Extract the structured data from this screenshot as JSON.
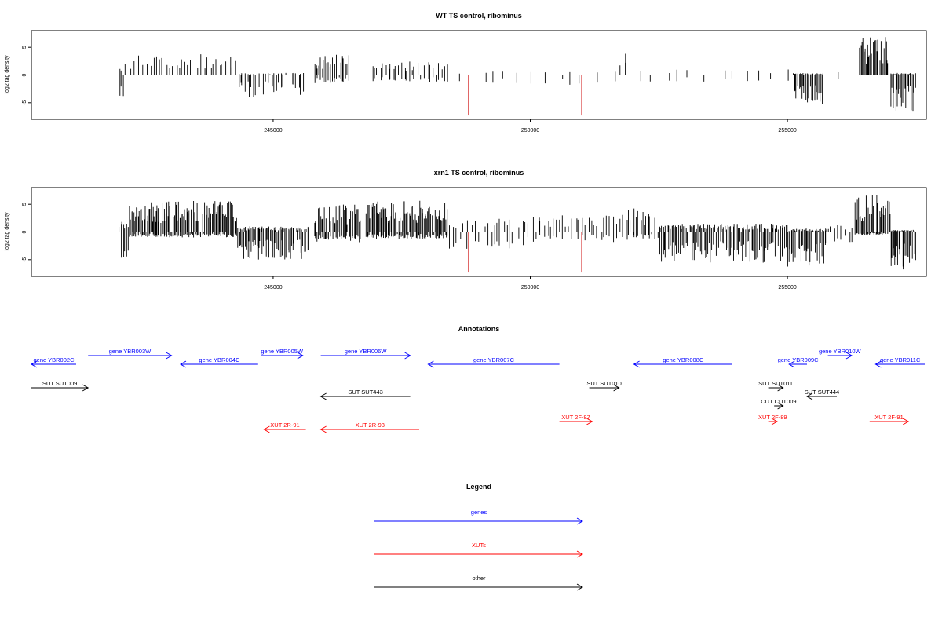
{
  "colors": {
    "gene": "#0000ff",
    "xut": "#ff0000",
    "other": "#000000",
    "highlight": "#cc0000"
  },
  "chart_data": [
    {
      "type": "bar",
      "title": "WT TS control, ribominus",
      "ylabel": "log2 tag density",
      "xlim": [
        240300,
        257700
      ],
      "ylim": [
        -8,
        8
      ],
      "x_ticks": [
        245000,
        250000,
        255000
      ],
      "x_tick_labels": [
        "245000",
        "250000",
        "255000"
      ],
      "y_ticks": [
        -5,
        0,
        5
      ],
      "y_tick_labels": [
        "-5",
        "0",
        "5"
      ],
      "highlight_lines": [
        {
          "x": 248800,
          "y": -7.3
        },
        {
          "x": 251000,
          "y": -7.3
        }
      ],
      "segments": [
        {
          "start": 242000,
          "end": 242100,
          "pos": 1.0,
          "neg": -3.5,
          "density": 0.6
        },
        {
          "start": 242100,
          "end": 244300,
          "pos": 3.0,
          "neg": 0,
          "density": 0.25
        },
        {
          "start": 244300,
          "end": 245600,
          "pos": 0.3,
          "neg": -3.2,
          "density": 0.35
        },
        {
          "start": 245800,
          "end": 246500,
          "pos": 3.0,
          "neg": -1.2,
          "density": 0.55
        },
        {
          "start": 246900,
          "end": 248400,
          "pos": 2.0,
          "neg": -1.0,
          "density": 0.3
        },
        {
          "start": 248400,
          "end": 251700,
          "pos": 0.5,
          "neg": -1.5,
          "density": 0.06
        },
        {
          "start": 251700,
          "end": 252000,
          "pos": 3.5,
          "neg": 0,
          "density": 0.2
        },
        {
          "start": 252000,
          "end": 255100,
          "pos": 0.8,
          "neg": -1.0,
          "density": 0.06
        },
        {
          "start": 255100,
          "end": 255700,
          "pos": 0.3,
          "neg": -4.5,
          "density": 0.75
        },
        {
          "start": 255700,
          "end": 256400,
          "pos": 0.4,
          "neg": -0.6,
          "density": 0.05
        },
        {
          "start": 256400,
          "end": 257000,
          "pos": 5.5,
          "neg": 0,
          "density": 0.85
        },
        {
          "start": 257000,
          "end": 257500,
          "pos": 0.3,
          "neg": -5.5,
          "density": 0.8
        }
      ]
    },
    {
      "type": "bar",
      "title": "xrn1 TS control, ribominus",
      "ylabel": "log2 tag density",
      "xlim": [
        240300,
        257700
      ],
      "ylim": [
        -8,
        8
      ],
      "x_ticks": [
        245000,
        250000,
        255000
      ],
      "x_tick_labels": [
        "245000",
        "250000",
        "255000"
      ],
      "y_ticks": [
        -5,
        0,
        5
      ],
      "y_tick_labels": [
        "-5",
        "0",
        "5"
      ],
      "highlight_lines": [
        {
          "x": 248800,
          "y": -7.3
        },
        {
          "x": 251000,
          "y": -7.3
        }
      ],
      "segments": [
        {
          "start": 242000,
          "end": 242200,
          "pos": 1.5,
          "neg": -4.0,
          "density": 0.6
        },
        {
          "start": 242200,
          "end": 244300,
          "pos": 4.5,
          "neg": -0.8,
          "density": 0.8
        },
        {
          "start": 244300,
          "end": 245700,
          "pos": 0.8,
          "neg": -4.0,
          "density": 0.7
        },
        {
          "start": 245800,
          "end": 246700,
          "pos": 4.0,
          "neg": -1.5,
          "density": 0.7
        },
        {
          "start": 246800,
          "end": 248400,
          "pos": 4.5,
          "neg": -1.0,
          "density": 0.8
        },
        {
          "start": 248400,
          "end": 250000,
          "pos": 2.0,
          "neg": -2.5,
          "density": 0.25
        },
        {
          "start": 250000,
          "end": 251900,
          "pos": 2.5,
          "neg": -1.5,
          "density": 0.25
        },
        {
          "start": 251900,
          "end": 252500,
          "pos": 3.5,
          "neg": -1.0,
          "density": 0.4
        },
        {
          "start": 252500,
          "end": 255000,
          "pos": 1.2,
          "neg": -4.5,
          "density": 0.65
        },
        {
          "start": 255000,
          "end": 255800,
          "pos": 0.5,
          "neg": -5.0,
          "density": 0.75
        },
        {
          "start": 255800,
          "end": 256300,
          "pos": 1.0,
          "neg": -1.5,
          "density": 0.2
        },
        {
          "start": 256300,
          "end": 257000,
          "pos": 5.5,
          "neg": -0.5,
          "density": 0.85
        },
        {
          "start": 257000,
          "end": 257500,
          "pos": 0.3,
          "neg": -5.5,
          "density": 0.8
        }
      ]
    }
  ],
  "annotations": {
    "title": "Annotations",
    "xlim": [
      240300,
      257700
    ],
    "features": [
      {
        "label": "gene YBR002C",
        "type": "gene",
        "start": 240300,
        "end": 241800,
        "strand": "-",
        "row": 1
      },
      {
        "label": "gene YBR003W",
        "type": "gene",
        "start": 242200,
        "end": 245000,
        "strand": "+",
        "row": 0
      },
      {
        "label": "gene YBR004C",
        "type": "gene",
        "start": 245300,
        "end": 247900,
        "strand": "-",
        "row": 1
      },
      {
        "label": "gene YBR005W",
        "type": "gene",
        "start": 248000,
        "end": 249400,
        "strand": "+",
        "row": 0
      },
      {
        "label": "gene YBR006W",
        "type": "gene",
        "start": 250000,
        "end": 253000,
        "strand": "+",
        "row": 0
      },
      {
        "label": "gene YBR007C",
        "type": "gene",
        "start": 253600,
        "end": 258000,
        "strand": "-",
        "row": 1
      },
      {
        "label": "gene YBR008C",
        "type": "gene",
        "start": 260500,
        "end": 263800,
        "strand": "-",
        "row": 1
      },
      {
        "label": "gene YBR009C",
        "type": "gene",
        "start": 265700,
        "end": 266300,
        "strand": "-",
        "row": 1
      },
      {
        "label": "gene YBR010W",
        "type": "gene",
        "start": 267000,
        "end": 267800,
        "strand": "+",
        "row": 0
      },
      {
        "label": "gene YBR011C",
        "type": "gene",
        "start": 268600,
        "end": 270300,
        "strand": "-",
        "row": 1
      },
      {
        "label": "SUT SUT009",
        "type": "other",
        "start": 240300,
        "end": 242200,
        "strand": "+",
        "row": 2
      },
      {
        "label": "SUT SUT443",
        "type": "other",
        "start": 250000,
        "end": 253000,
        "strand": "-",
        "row": 3
      },
      {
        "label": "SUT SUT010",
        "type": "other",
        "start": 259000,
        "end": 260000,
        "strand": "+",
        "row": 2
      },
      {
        "label": "SUT SUT011",
        "type": "other",
        "start": 265000,
        "end": 265500,
        "strand": "+",
        "row": 2
      },
      {
        "label": "SUT SUT444",
        "type": "other",
        "start": 266300,
        "end": 267300,
        "strand": "-",
        "row": 3
      },
      {
        "label": "CUT CUT009",
        "type": "other",
        "start": 265200,
        "end": 265500,
        "strand": "+",
        "row": 4
      },
      {
        "label": "XUT 2R-91",
        "type": "xut",
        "start": 248100,
        "end": 249500,
        "strand": "-",
        "row": 6
      },
      {
        "label": "XUT 2R-93",
        "type": "xut",
        "start": 250000,
        "end": 253300,
        "strand": "-",
        "row": 6
      },
      {
        "label": "XUT 2F-87",
        "type": "xut",
        "start": 258000,
        "end": 259100,
        "strand": "+",
        "row": 5
      },
      {
        "label": "XUT 2F-89",
        "type": "xut",
        "start": 265000,
        "end": 265300,
        "strand": "+",
        "row": 5
      },
      {
        "label": "XUT 2F-91",
        "type": "xut",
        "start": 268400,
        "end": 269700,
        "strand": "+",
        "row": 5
      }
    ]
  },
  "legend": {
    "title": "Legend",
    "items": [
      {
        "label": "genes",
        "type": "gene"
      },
      {
        "label": "XUTs",
        "type": "xut"
      },
      {
        "label": "other",
        "type": "other"
      }
    ]
  }
}
